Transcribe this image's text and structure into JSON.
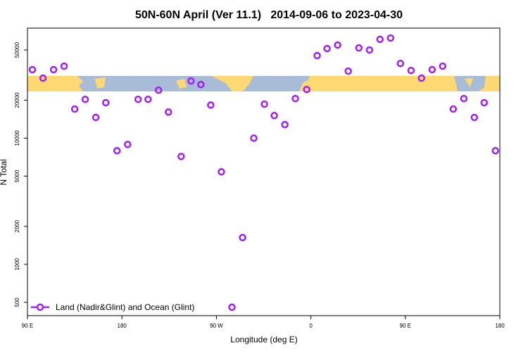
{
  "chart_data": {
    "type": "scatter",
    "title": "50N-60N April (Ver 11.1)   2014-09-06 to 2023-04-30",
    "x_label": "Longitude (deg E)",
    "y_label": "N Total",
    "log_y": true,
    "legend": "bottom-left",
    "xlim": [
      90,
      540
    ],
    "xticks": [
      {
        "value": 90,
        "label": "90 E"
      },
      {
        "value": 180,
        "label": "180"
      },
      {
        "value": 270,
        "label": "90 W"
      },
      {
        "value": 360,
        "label": "0"
      },
      {
        "value": 450,
        "label": "90 E"
      },
      {
        "value": 540,
        "label": "180"
      }
    ],
    "ylim": [
      392,
      74500
    ],
    "yticks": [
      500,
      1000,
      2000,
      5000,
      10000,
      20000,
      50000
    ],
    "series": [
      {
        "name": "Land (Nadir&Glint) and Ocean (Glint)",
        "color": "#a020f0",
        "x": [
          94.7,
          104.8,
          114.9,
          124.9,
          135,
          145,
          155.1,
          164.6,
          175.3,
          185.4,
          195.4,
          204.9,
          214.9,
          224.3,
          236.4,
          245.8,
          255.2,
          264.6,
          274.7,
          284.8,
          294.9,
          305.6,
          315.7,
          325.1,
          335.2,
          345.2,
          356,
          366,
          375.4,
          385.5,
          395.6,
          405.7,
          415.8,
          425.8,
          435.9,
          445.3,
          455.4,
          465.4,
          475.5,
          485.5,
          495.6,
          505.7,
          515.7,
          525.1,
          535.8
        ],
        "values": [
          34900,
          29900,
          34900,
          37200,
          17000,
          20300,
          14600,
          19100,
          7950,
          8920,
          20300,
          20300,
          24000,
          16100,
          7160,
          28400,
          26600,
          18300,
          5410,
          457,
          1630,
          10000,
          18600,
          15100,
          12800,
          20600,
          24300,
          45100,
          51300,
          54700,
          34000,
          51900,
          50000,
          60700,
          62200,
          39100,
          34400,
          29900,
          34900,
          37200,
          17000,
          20600,
          14600,
          19100,
          7950
        ]
      }
    ]
  }
}
